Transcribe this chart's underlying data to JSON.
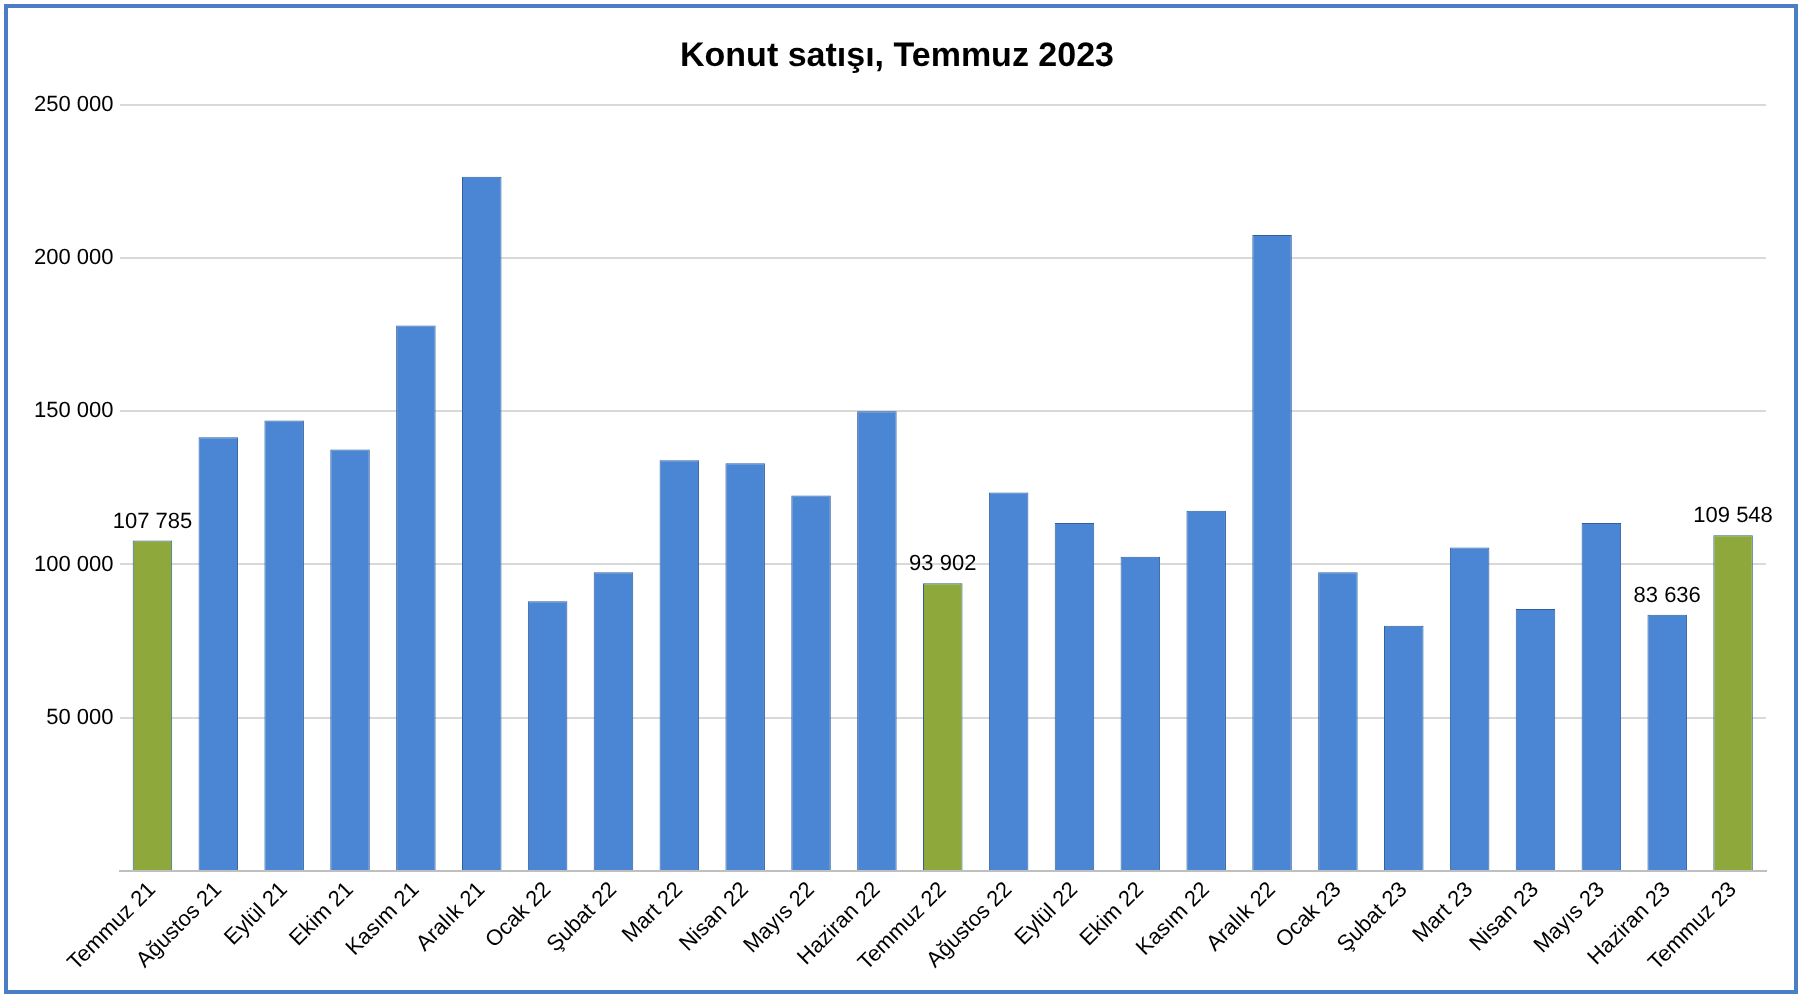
{
  "chart_data": {
    "type": "bar",
    "title": "Konut satışı, Temmuz 2023",
    "categories": [
      "Temmuz 21",
      "Ağustos 21",
      "Eylül 21",
      "Ekim 21",
      "Kasım 21",
      "Aralık 21",
      "Ocak 22",
      "Şubat 22",
      "Mart 22",
      "Nisan 22",
      "Mayıs 22",
      "Haziran 22",
      "Temmuz 22",
      "Ağustos 22",
      "Eylül 22",
      "Ekim 22",
      "Kasım 22",
      "Aralık 22",
      "Ocak 23",
      "Şubat 23",
      "Mart 23",
      "Nisan 23",
      "Mayıs 23",
      "Haziran 23",
      "Temmuz 23"
    ],
    "values": [
      107785,
      141500,
      147000,
      137500,
      178000,
      226500,
      88000,
      97500,
      134000,
      133000,
      122500,
      150000,
      93902,
      123500,
      113500,
      102500,
      117500,
      207500,
      97500,
      80000,
      105500,
      85500,
      113500,
      83636,
      109548
    ],
    "colors": [
      "#8fa83c",
      "#4a86d4",
      "#4a86d4",
      "#4a86d4",
      "#4a86d4",
      "#4a86d4",
      "#4a86d4",
      "#4a86d4",
      "#4a86d4",
      "#4a86d4",
      "#4a86d4",
      "#4a86d4",
      "#8fa83c",
      "#4a86d4",
      "#4a86d4",
      "#4a86d4",
      "#4a86d4",
      "#4a86d4",
      "#4a86d4",
      "#4a86d4",
      "#4a86d4",
      "#4a86d4",
      "#4a86d4",
      "#4a86d4",
      "#8fa83c"
    ],
    "value_labels": [
      "107 785",
      null,
      null,
      null,
      null,
      null,
      null,
      null,
      null,
      null,
      null,
      null,
      "93 902",
      null,
      null,
      null,
      null,
      null,
      null,
      null,
      null,
      null,
      null,
      "83 636",
      "109 548"
    ],
    "ylim": [
      0,
      250000
    ],
    "yticks": [
      {
        "value": 0,
        "label": null
      },
      {
        "value": 50000,
        "label": "50 000"
      },
      {
        "value": 100000,
        "label": "100 000"
      },
      {
        "value": 150000,
        "label": "150 000"
      },
      {
        "value": 200000,
        "label": "200 000"
      },
      {
        "value": 250000,
        "label": "250 000"
      }
    ],
    "grid": "y"
  }
}
